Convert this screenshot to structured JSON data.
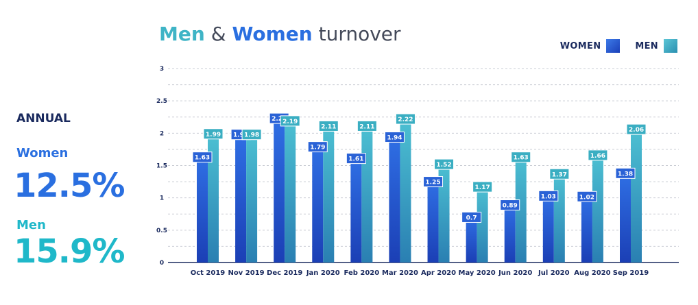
{
  "summary": {
    "heading": "ANNUAL",
    "women_label": "Women",
    "women_value": "12.5%",
    "men_label": "Men",
    "men_value": "15.9%"
  },
  "colors": {
    "women": "#2563d9",
    "men": "#3ab0c4",
    "axis_text": "#1a2a5e"
  },
  "chart_data": {
    "type": "bar",
    "title": "Men & Women turnover",
    "title_parts": {
      "men": "Men",
      "amp": "&",
      "women": "Women",
      "rest": "turnover"
    },
    "legend": [
      "WOMEN",
      "MEN"
    ],
    "legend_position": "top-right",
    "categories": [
      "Oct 2019",
      "Nov 2019",
      "Dec 2019",
      "Jan 2020",
      "Feb 2020",
      "Mar 2020",
      "Apr 2020",
      "May 2020",
      "Jun 2020",
      "Jul 2020",
      "Aug 2020",
      "Sep 2019"
    ],
    "series": [
      {
        "name": "WOMEN",
        "values": [
          1.63,
          1.98,
          2.23,
          1.79,
          1.61,
          1.94,
          1.25,
          0.7,
          0.89,
          1.03,
          1.02,
          1.38
        ]
      },
      {
        "name": "MEN",
        "values": [
          1.99,
          1.98,
          2.19,
          2.11,
          2.11,
          2.22,
          1.52,
          1.17,
          1.63,
          1.37,
          1.66,
          2.06
        ]
      }
    ],
    "yticks": [
      "0",
      "0.5",
      "1",
      "1.5",
      "2",
      "2.5",
      "3"
    ],
    "ylim": [
      0,
      3
    ],
    "grid": true
  }
}
